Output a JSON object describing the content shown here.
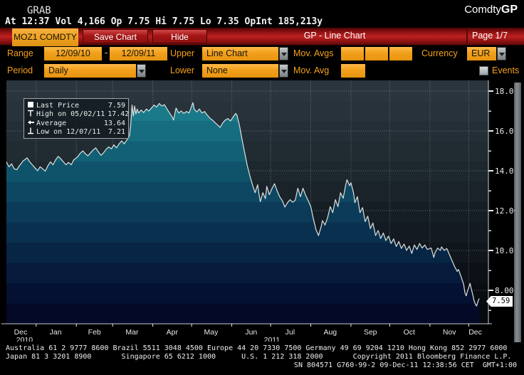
{
  "header": {
    "grab": "GRAB",
    "ticker_line": "At 12:37 Vol 4,166 Op 7.75 Hi 7.75 Lo 7.35 OpInt 185,213y",
    "comdty": "Comdty",
    "function_code": "GP"
  },
  "title_bar": {
    "security": "MOZ1 COMDTY",
    "save_chart": "Save Chart",
    "hide": "Hide",
    "title": "GP - Line Chart",
    "page": "Page 1/7"
  },
  "controls": {
    "range_label": "Range",
    "range_start": "12/09/10",
    "range_separator": "-",
    "range_end": "12/09/11",
    "upper_label": "Upper",
    "upper_value": "Line Chart",
    "mov_avgs_label": "Mov. Avgs",
    "currency_label": "Currency",
    "currency_value": "EUR",
    "period_label": "Period",
    "period_value": "Daily",
    "lower_label": "Lower",
    "lower_value": "None",
    "mov_avg_label": "Mov. Avg",
    "events_label": "Events"
  },
  "legend": {
    "rows": [
      {
        "label": "Last Price",
        "value": "7.59"
      },
      {
        "label": "High on 05/02/11",
        "value": "17.42"
      },
      {
        "label": "Average",
        "value": "13.64"
      },
      {
        "label": "Low on 12/07/11",
        "value": "7.21"
      }
    ]
  },
  "price_tag": "7.59",
  "scroll_marker": "«",
  "chart_data": {
    "type": "area",
    "security": "MOZ1 COMDTY",
    "x_start_date": "12/09/10",
    "x_end_date": "12/09/11",
    "x_total_days": 365,
    "last_price": 7.59,
    "high": 17.42,
    "high_date": "05/02/11",
    "average": 13.64,
    "low": 7.21,
    "low_date": "12/07/11",
    "y_axis": {
      "ticks": [
        18,
        16,
        14,
        12,
        10,
        8
      ],
      "labels": [
        "18.00",
        "16.00",
        "14.00",
        "12.00",
        "10.00",
        "8.00"
      ],
      "minor_ticks": [
        17,
        15,
        13,
        11,
        9,
        7
      ],
      "range_top": 18.54,
      "range_bottom": 6.32
    },
    "x_axis": {
      "months": [
        {
          "label": "Dec",
          "label_day": 11,
          "year": "2010",
          "year_day": 14
        },
        {
          "label": "Jan",
          "grid_day": 23,
          "label_day": 38
        },
        {
          "label": "Feb",
          "grid_day": 54,
          "label_day": 68
        },
        {
          "label": "Mar",
          "grid_day": 82,
          "label_day": 97
        },
        {
          "label": "Apr",
          "grid_day": 113,
          "label_day": 128
        },
        {
          "label": "May",
          "grid_day": 143,
          "label_day": 158
        },
        {
          "label": "Jun",
          "grid_day": 174,
          "label_day": 189,
          "year": "2011",
          "year_day": 205
        },
        {
          "label": "Jul",
          "grid_day": 204,
          "label_day": 219
        },
        {
          "label": "Aug",
          "grid_day": 235,
          "label_day": 250
        },
        {
          "label": "Sep",
          "grid_day": 266,
          "label_day": 281
        },
        {
          "label": "Oct",
          "grid_day": 296,
          "label_day": 311
        },
        {
          "label": "Nov",
          "grid_day": 327,
          "label_day": 342
        },
        {
          "label": "Dec",
          "grid_day": 357,
          "label_day": 362
        }
      ]
    },
    "series": [
      {
        "name": "Last Price",
        "points": [
          [
            0,
            14.45
          ],
          [
            2,
            14.2
          ],
          [
            4,
            14.35
          ],
          [
            6,
            14.1
          ],
          [
            8,
            14.05
          ],
          [
            10,
            14.25
          ],
          [
            13,
            14.5
          ],
          [
            16,
            14.65
          ],
          [
            18,
            14.45
          ],
          [
            20,
            14.3
          ],
          [
            22,
            14.15
          ],
          [
            24,
            14.0
          ],
          [
            26,
            14.2
          ],
          [
            28,
            14.1
          ],
          [
            30,
            13.98
          ],
          [
            32,
            14.25
          ],
          [
            34,
            14.45
          ],
          [
            36,
            14.3
          ],
          [
            38,
            14.55
          ],
          [
            40,
            14.72
          ],
          [
            42,
            14.6
          ],
          [
            44,
            14.45
          ],
          [
            46,
            14.3
          ],
          [
            48,
            14.42
          ],
          [
            50,
            14.3
          ],
          [
            52,
            14.55
          ],
          [
            55,
            14.7
          ],
          [
            57,
            14.88
          ],
          [
            59,
            15.0
          ],
          [
            61,
            14.85
          ],
          [
            63,
            14.75
          ],
          [
            65,
            14.9
          ],
          [
            67,
            15.05
          ],
          [
            69,
            15.15
          ],
          [
            71,
            14.95
          ],
          [
            73,
            14.78
          ],
          [
            75,
            14.9
          ],
          [
            77,
            15.08
          ],
          [
            79,
            15.2
          ],
          [
            81,
            15.1
          ],
          [
            83,
            15.3
          ],
          [
            85,
            15.15
          ],
          [
            87,
            15.35
          ],
          [
            89,
            15.5
          ],
          [
            91,
            15.35
          ],
          [
            93,
            15.55
          ],
          [
            95,
            15.75
          ],
          [
            96,
            16.3
          ],
          [
            97,
            17.3
          ],
          [
            98,
            16.75
          ],
          [
            99,
            17.25
          ],
          [
            100,
            16.85
          ],
          [
            101,
            17.1
          ],
          [
            102,
            16.9
          ],
          [
            104,
            17.05
          ],
          [
            106,
            16.92
          ],
          [
            108,
            17.1
          ],
          [
            110,
            17.0
          ],
          [
            112,
            17.15
          ],
          [
            114,
            17.3
          ],
          [
            116,
            17.2
          ],
          [
            118,
            17.38
          ],
          [
            120,
            17.25
          ],
          [
            122,
            17.32
          ],
          [
            124,
            17.1
          ],
          [
            126,
            16.9
          ],
          [
            128,
            16.7
          ],
          [
            129,
            16.55
          ],
          [
            131,
            17.15
          ],
          [
            133,
            16.9
          ],
          [
            135,
            17.0
          ],
          [
            137,
            16.88
          ],
          [
            139,
            16.98
          ],
          [
            141,
            16.9
          ],
          [
            144,
            17.42
          ],
          [
            145,
            17.1
          ],
          [
            147,
            16.95
          ],
          [
            149,
            17.1
          ],
          [
            151,
            16.9
          ],
          [
            153,
            16.98
          ],
          [
            155,
            16.8
          ],
          [
            157,
            16.65
          ],
          [
            159,
            16.55
          ],
          [
            161,
            16.42
          ],
          [
            163,
            16.3
          ],
          [
            165,
            16.18
          ],
          [
            167,
            16.4
          ],
          [
            169,
            16.55
          ],
          [
            171,
            16.62
          ],
          [
            173,
            16.5
          ],
          [
            175,
            16.7
          ],
          [
            177,
            16.88
          ],
          [
            178,
            16.8
          ],
          [
            180,
            16.25
          ],
          [
            182,
            15.55
          ],
          [
            184,
            14.9
          ],
          [
            186,
            14.25
          ],
          [
            188,
            13.75
          ],
          [
            190,
            13.3
          ],
          [
            192,
            12.9
          ],
          [
            193,
            13.1
          ],
          [
            194,
            13.3
          ],
          [
            195,
            12.85
          ],
          [
            196,
            12.45
          ],
          [
            198,
            12.9
          ],
          [
            200,
            12.6
          ],
          [
            201,
            13.22
          ],
          [
            203,
            12.8
          ],
          [
            205,
            13.1
          ],
          [
            207,
            13.35
          ],
          [
            209,
            13.0
          ],
          [
            211,
            12.7
          ],
          [
            213,
            12.5
          ],
          [
            215,
            12.18
          ],
          [
            217,
            12.4
          ],
          [
            219,
            12.55
          ],
          [
            221,
            12.42
          ],
          [
            223,
            12.52
          ],
          [
            225,
            13.12
          ],
          [
            227,
            12.7
          ],
          [
            229,
            13.12
          ],
          [
            231,
            12.78
          ],
          [
            233,
            12.5
          ],
          [
            235,
            12.2
          ],
          [
            237,
            11.6
          ],
          [
            239,
            11.05
          ],
          [
            241,
            10.75
          ],
          [
            243,
            11.2
          ],
          [
            244,
            11.5
          ],
          [
            246,
            11.28
          ],
          [
            248,
            11.65
          ],
          [
            250,
            12.2
          ],
          [
            252,
            11.9
          ],
          [
            254,
            12.55
          ],
          [
            256,
            12.2
          ],
          [
            258,
            12.9
          ],
          [
            260,
            12.62
          ],
          [
            262,
            13.3
          ],
          [
            263,
            13.55
          ],
          [
            265,
            13.25
          ],
          [
            266,
            13.4
          ],
          [
            268,
            12.9
          ],
          [
            269,
            12.4
          ],
          [
            271,
            12.7
          ],
          [
            273,
            11.9
          ],
          [
            275,
            12.15
          ],
          [
            277,
            11.45
          ],
          [
            279,
            11.72
          ],
          [
            281,
            11.1
          ],
          [
            283,
            11.38
          ],
          [
            285,
            10.75
          ],
          [
            287,
            11.0
          ],
          [
            289,
            10.6
          ],
          [
            291,
            10.88
          ],
          [
            293,
            10.5
          ],
          [
            295,
            10.72
          ],
          [
            297,
            10.35
          ],
          [
            299,
            10.58
          ],
          [
            301,
            10.2
          ],
          [
            303,
            10.45
          ],
          [
            305,
            10.1
          ],
          [
            307,
            10.32
          ],
          [
            309,
            10.0
          ],
          [
            311,
            10.22
          ],
          [
            313,
            9.85
          ],
          [
            315,
            10.28
          ],
          [
            317,
            10.05
          ],
          [
            319,
            10.35
          ],
          [
            321,
            10.12
          ],
          [
            323,
            10.28
          ],
          [
            325,
            10.05
          ],
          [
            328,
            10.12
          ],
          [
            330,
            9.65
          ],
          [
            331,
            9.9
          ],
          [
            333,
            10.12
          ],
          [
            335,
            10.0
          ],
          [
            336,
            10.18
          ],
          [
            338,
            10.0
          ],
          [
            340,
            10.1
          ],
          [
            342,
            9.8
          ],
          [
            344,
            9.5
          ],
          [
            346,
            9.2
          ],
          [
            348,
            8.95
          ],
          [
            349,
            9.05
          ],
          [
            351,
            8.7
          ],
          [
            353,
            8.3
          ],
          [
            354,
            7.88
          ],
          [
            355,
            7.72
          ],
          [
            356,
            7.95
          ],
          [
            357,
            8.15
          ],
          [
            358,
            8.35
          ],
          [
            359,
            8.05
          ],
          [
            360,
            7.8
          ],
          [
            361,
            7.5
          ],
          [
            362,
            7.32
          ],
          [
            363,
            7.21
          ],
          [
            364,
            7.42
          ],
          [
            365,
            7.59
          ]
        ]
      }
    ],
    "colors": {
      "line": "#dde2df",
      "grid": "#96a2a8",
      "axis": "#c6ccce",
      "tick_text": "#e8ebea",
      "accent_orange": "#f5a01a",
      "bar_red": "#a31414",
      "bg_bands": [
        "#2a353d",
        "#27323a",
        "#242e36",
        "#212b32",
        "#1d272e",
        "#1a222a",
        "#161e25",
        "#131a21",
        "#10161c",
        "#0c1117",
        "#090d12",
        "#06090d"
      ],
      "fill_bands": [
        "#1e8593",
        "#1a7a89",
        "#166d80",
        "#126076",
        "#0f536b",
        "#0d4762",
        "#0b3b58",
        "#09304f",
        "#072545",
        "#061b3c",
        "#041132",
        "#030927"
      ]
    }
  },
  "footer": {
    "line1": "Australia 61 2 9777 8600 Brazil 5511 3048 4500 Europe 44 20 7330 7500 Germany 49 69 9204 1210 Hong Kong 852 2977 6000",
    "line2": "Japan 81 3 3201 8900       Singapore 65 6212 1000      U.S. 1 212 318 2000       Copyright 2011 Bloomberg Finance L.P.",
    "line3": "SN 804571 G760-99-2 09-Dec-11 12:38:56 CET  GMT+1:00"
  }
}
